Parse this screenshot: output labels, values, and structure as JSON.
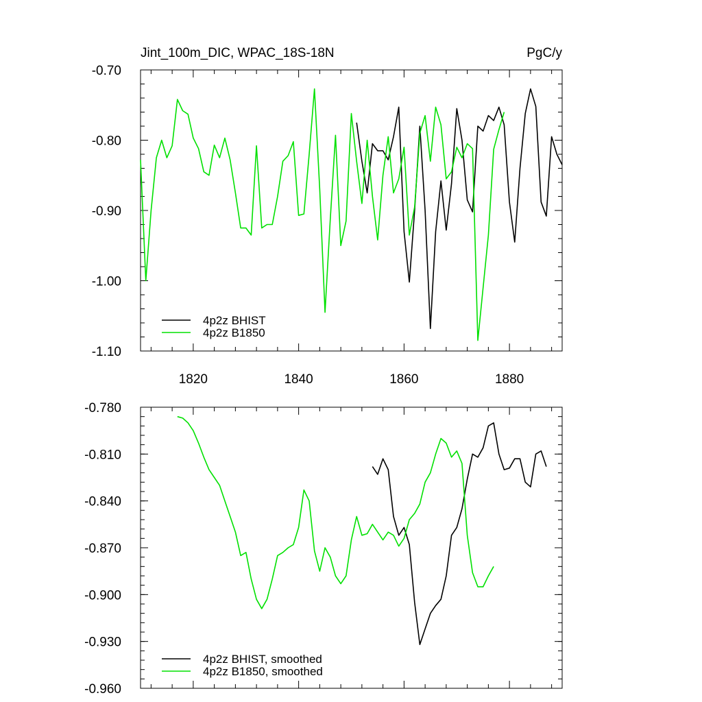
{
  "title_left": "Jint_100m_DIC, WPAC_18S-18N",
  "title_right": "PgC/y",
  "colors": {
    "hist": "#000000",
    "b1850": "#00e000"
  },
  "chart_data": [
    {
      "type": "line",
      "name_key": "top",
      "xlim": [
        1810,
        1890
      ],
      "ylim": [
        -1.1,
        -0.7
      ],
      "yticks": [
        -0.7,
        -0.8,
        -0.9,
        -1.0,
        -1.1
      ],
      "ytick_labels": [
        "-0.70",
        "-0.80",
        "-0.90",
        "-1.00",
        "-1.10"
      ],
      "xticks": [
        1820,
        1840,
        1860,
        1880
      ],
      "xtick_labels": [
        "1820",
        "1840",
        "1860",
        "1880"
      ],
      "legend_position": "bottom-left",
      "series": [
        {
          "name": "4p2z BHIST",
          "color_key": "hist",
          "x0": 1851,
          "dx": 1,
          "values": [
            -0.775,
            -0.83,
            -0.875,
            -0.805,
            -0.815,
            -0.815,
            -0.828,
            -0.795,
            -0.753,
            -0.93,
            -1.002,
            -0.9,
            -0.78,
            -0.9,
            -1.068,
            -0.93,
            -0.858,
            -0.928,
            -0.862,
            -0.755,
            -0.8,
            -0.885,
            -0.902,
            -0.78,
            -0.787,
            -0.765,
            -0.772,
            -0.753,
            -0.778,
            -0.888,
            -0.945,
            -0.84,
            -0.762,
            -0.727,
            -0.752,
            -0.888,
            -0.908,
            -0.795,
            -0.82,
            -0.835
          ]
        },
        {
          "name": "4p2z B1850",
          "color_key": "b1850",
          "x0": 1810,
          "dx": 1,
          "values": [
            -0.828,
            -1.0,
            -0.9,
            -0.825,
            -0.8,
            -0.825,
            -0.808,
            -0.742,
            -0.758,
            -0.763,
            -0.797,
            -0.812,
            -0.845,
            -0.85,
            -0.807,
            -0.825,
            -0.797,
            -0.828,
            -0.875,
            -0.925,
            -0.925,
            -0.935,
            -0.808,
            -0.925,
            -0.92,
            -0.92,
            -0.88,
            -0.83,
            -0.822,
            -0.802,
            -0.907,
            -0.905,
            -0.82,
            -0.727,
            -0.87,
            -1.045,
            -0.912,
            -0.793,
            -0.95,
            -0.915,
            -0.762,
            -0.83,
            -0.89,
            -0.8,
            -0.88,
            -0.942,
            -0.85,
            -0.795,
            -0.875,
            -0.855,
            -0.81,
            -0.935,
            -0.895,
            -0.79,
            -0.765,
            -0.83,
            -0.753,
            -0.778,
            -0.855,
            -0.845,
            -0.81,
            -0.825,
            -0.805,
            -0.812,
            -1.085,
            -1.01,
            -0.935,
            -0.813,
            -0.785,
            -0.76
          ]
        }
      ]
    },
    {
      "type": "line",
      "name_key": "bottom",
      "xlim": [
        1810,
        1890
      ],
      "ylim": [
        -0.96,
        -0.78
      ],
      "yticks": [
        -0.78,
        -0.81,
        -0.84,
        -0.87,
        -0.9,
        -0.93,
        -0.96
      ],
      "ytick_labels": [
        "-0.780",
        "-0.810",
        "-0.840",
        "-0.870",
        "-0.900",
        "-0.930",
        "-0.960"
      ],
      "xticks": [
        1820,
        1840,
        1860,
        1880
      ],
      "xtick_labels": [],
      "legend_position": "bottom-left",
      "series": [
        {
          "name": "4p2z BHIST, smoothed",
          "color_key": "hist",
          "x0": 1854,
          "dx": 1,
          "values": [
            -0.818,
            -0.823,
            -0.813,
            -0.82,
            -0.85,
            -0.862,
            -0.857,
            -0.868,
            -0.905,
            -0.932,
            -0.922,
            -0.912,
            -0.907,
            -0.903,
            -0.888,
            -0.862,
            -0.857,
            -0.845,
            -0.826,
            -0.81,
            -0.812,
            -0.806,
            -0.792,
            -0.79,
            -0.81,
            -0.82,
            -0.819,
            -0.813,
            -0.813,
            -0.828,
            -0.831,
            -0.81,
            -0.808,
            -0.818
          ]
        },
        {
          "name": "4p2z B1850, smoothed",
          "color_key": "b1850",
          "x0": 1817,
          "dx": 1,
          "values": [
            -0.786,
            -0.787,
            -0.79,
            -0.795,
            -0.803,
            -0.812,
            -0.82,
            -0.825,
            -0.83,
            -0.84,
            -0.85,
            -0.86,
            -0.875,
            -0.873,
            -0.89,
            -0.903,
            -0.909,
            -0.903,
            -0.89,
            -0.875,
            -0.873,
            -0.87,
            -0.868,
            -0.857,
            -0.833,
            -0.84,
            -0.872,
            -0.885,
            -0.87,
            -0.876,
            -0.888,
            -0.893,
            -0.888,
            -0.865,
            -0.85,
            -0.862,
            -0.861,
            -0.855,
            -0.86,
            -0.865,
            -0.86,
            -0.862,
            -0.869,
            -0.864,
            -0.852,
            -0.848,
            -0.842,
            -0.828,
            -0.822,
            -0.81,
            -0.8,
            -0.803,
            -0.812,
            -0.808,
            -0.816,
            -0.862,
            -0.886,
            -0.895,
            -0.895,
            -0.888,
            -0.882
          ]
        }
      ]
    }
  ]
}
